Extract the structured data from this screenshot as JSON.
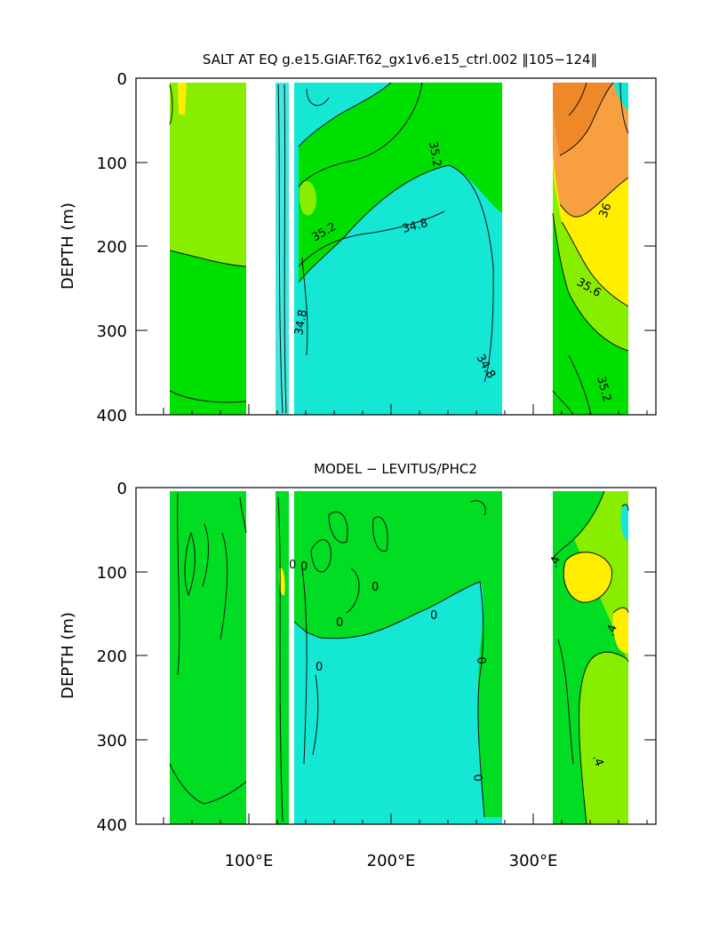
{
  "chart_data": [
    {
      "type": "heatmap",
      "title": "SALT AT EQ g.e15.GIAF.T62_gx1v6.e15_ctrl.002 ‖105−124‖",
      "ylabel": "DEPTH (m)",
      "xlabel": "",
      "xlim": [
        28,
        388
      ],
      "ylim": [
        400,
        0
      ],
      "y_ticks": [
        "0",
        "100",
        "200",
        "300",
        "400"
      ],
      "x_ticks": [],
      "contour_labels": [
        "35.2",
        "35.2",
        "34.8",
        "34.8",
        "34.8",
        "36",
        "35.6",
        "35.2"
      ],
      "colors": {
        "low": "#14e8d4",
        "mid": "#00ee00",
        "high": "#ffee00",
        "max": "#ff8c20"
      }
    },
    {
      "type": "heatmap",
      "title": "MODEL − LEVITUS/PHC2",
      "ylabel": "DEPTH (m)",
      "xlabel": "",
      "xlim": [
        28,
        388
      ],
      "ylim": [
        400,
        0
      ],
      "y_ticks": [
        "0",
        "100",
        "200",
        "300",
        "400"
      ],
      "x_ticks": [
        "100°E",
        "200°E",
        "300°E"
      ],
      "contour_labels": [
        "0",
        "0",
        "0",
        "0",
        "0",
        "0",
        "0",
        "0",
        ".4",
        ".4",
        ".4"
      ],
      "colors": {
        "negative": "#14e8d4",
        "zero": "#00dd22",
        "positive": "#88ee00",
        "max": "#ffee00"
      }
    }
  ]
}
